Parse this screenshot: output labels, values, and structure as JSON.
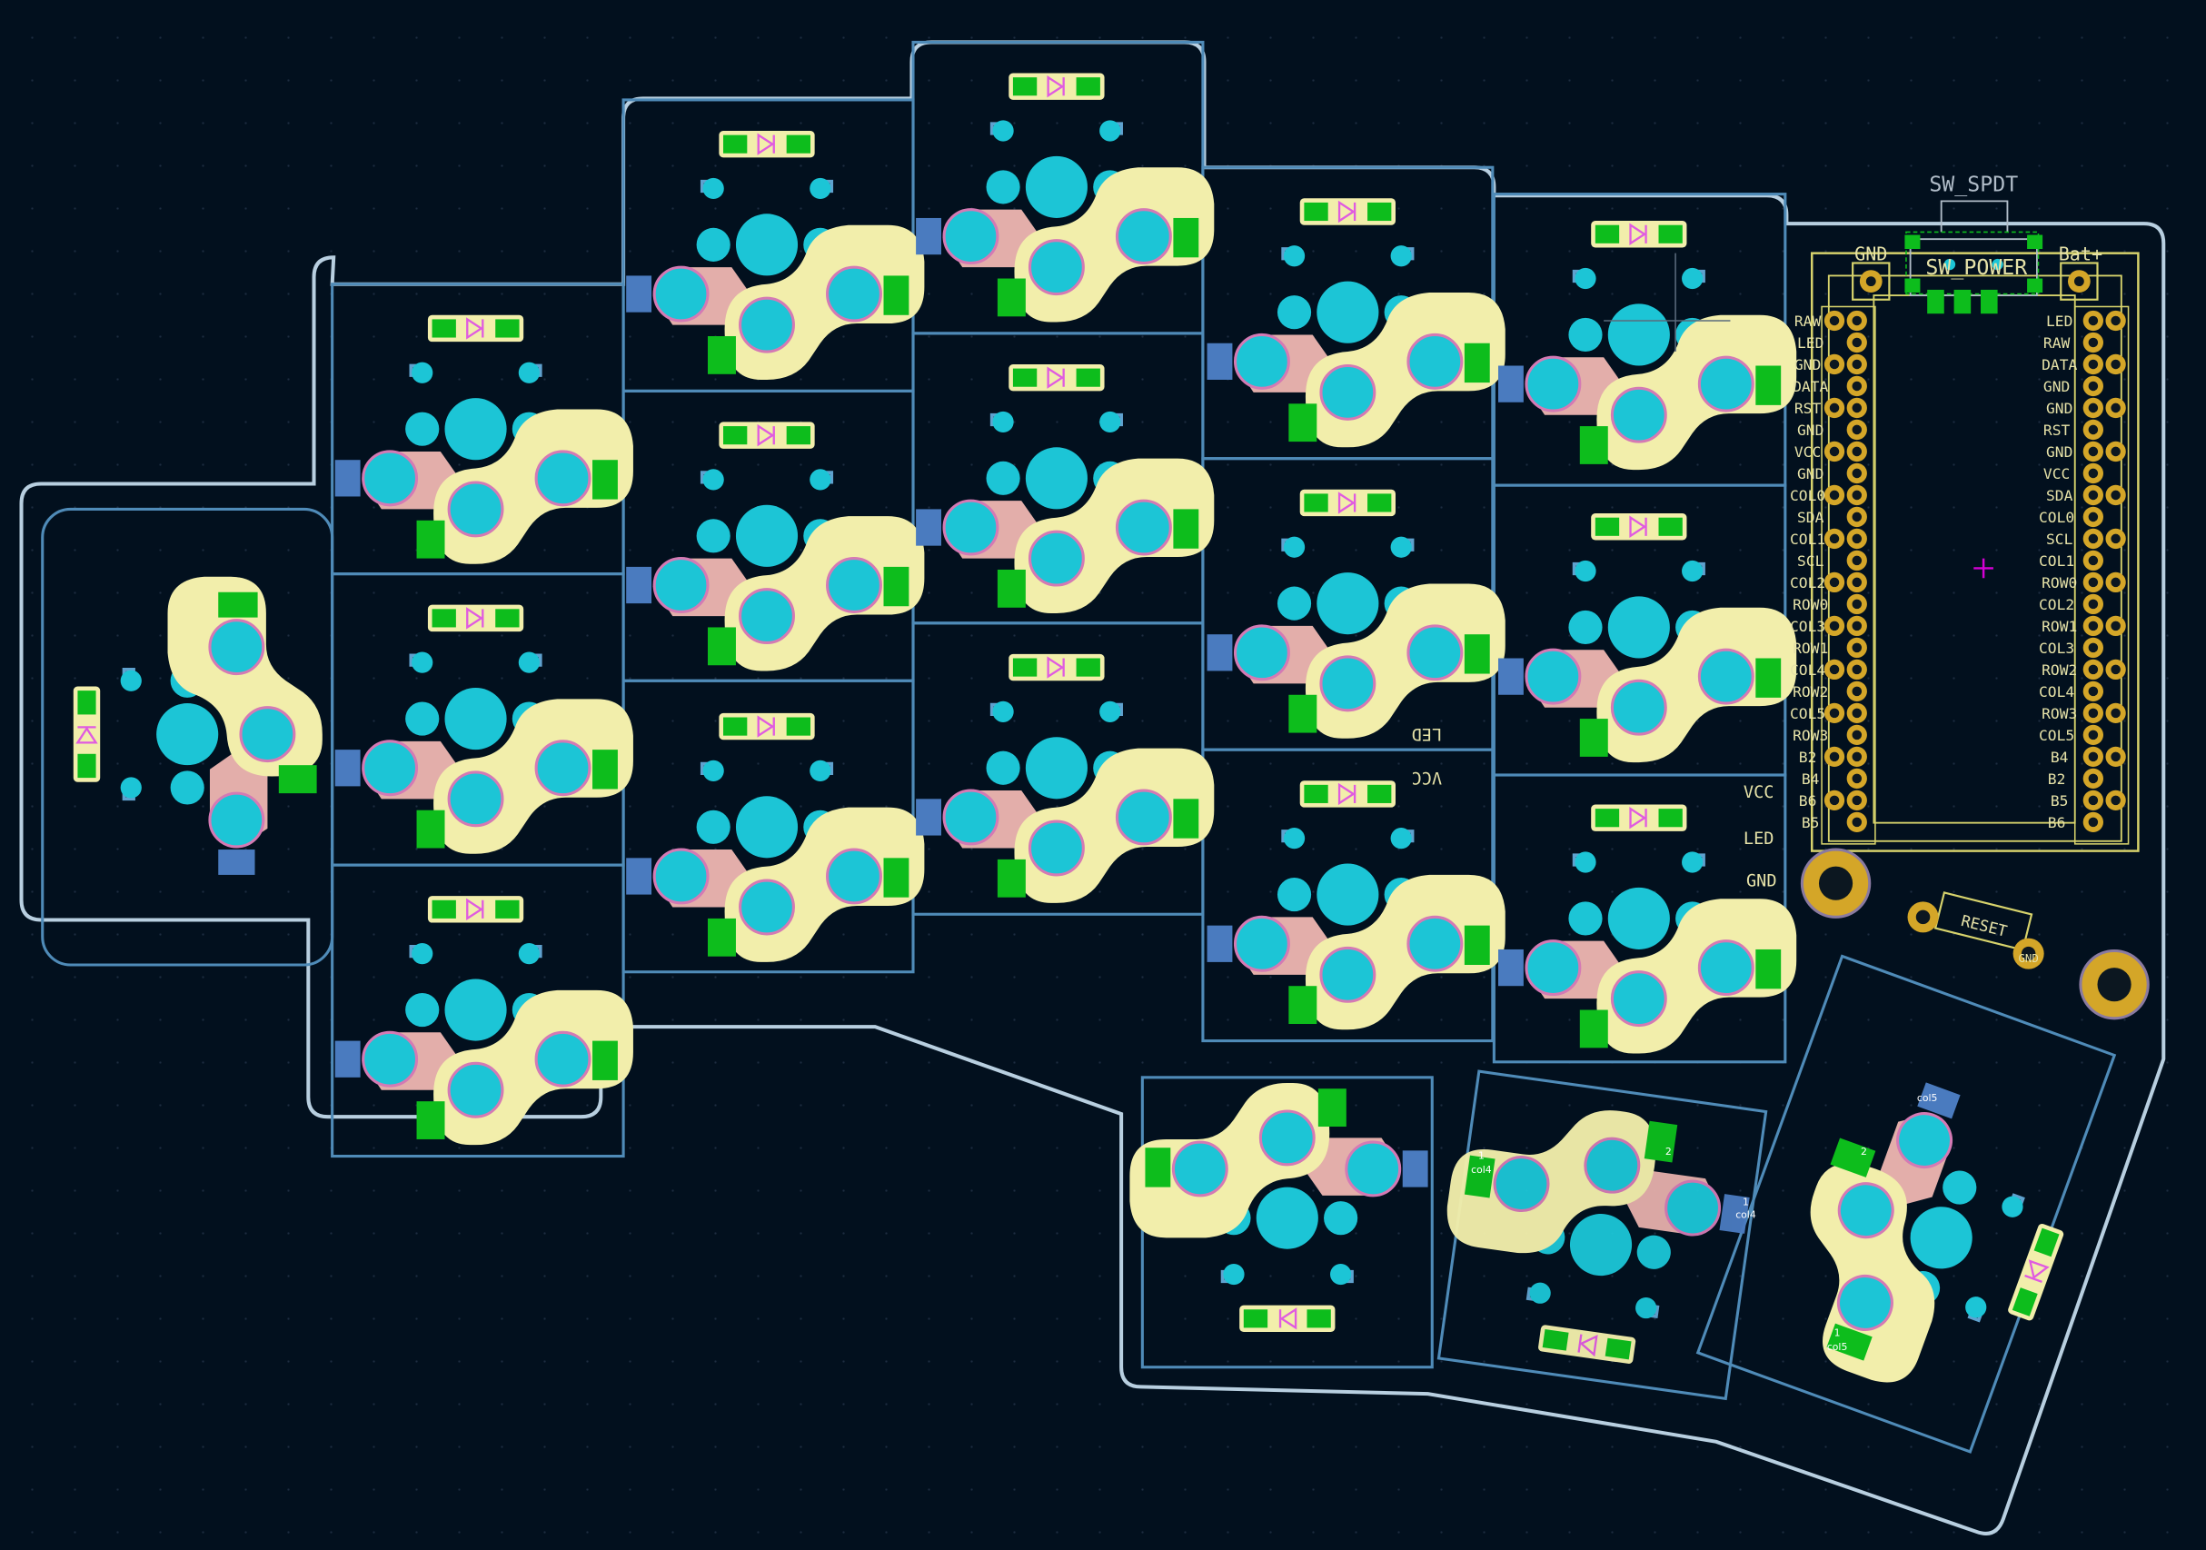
{
  "app": "KiCad PCB Editor",
  "view": "pcb-layout-canvas",
  "colors": {
    "background": "#02101e",
    "board_edge": "#b8cfe0",
    "courtyard": "#4f8bb8",
    "hole": "#1cc5d6",
    "pad_green": "#0dbd1c",
    "pad_blue": "#4a7bbf",
    "hotswap_pink": "#e3aeaa",
    "hotswap_yellow": "#f2eeab",
    "silkscreen": "#e6e2a8",
    "header_pin": "#d4a628",
    "marker": "#d400d4"
  },
  "labels": {
    "sw_spdt": "SW_SPDT",
    "sw_power": "SW_POWER",
    "gnd": "GND",
    "bat": "Bat+",
    "vcc": "VCC",
    "led": "LED",
    "vcc_mirrored": "VCC",
    "led_mirrored": "LED",
    "reset": "RESET",
    "reset_gnd": "GND"
  },
  "header_left_labels": [
    "RAW",
    "LED",
    "GND",
    "DATA",
    "RST",
    "GND",
    "VCC",
    "GND",
    "COL0",
    "SDA",
    "COL1",
    "SCL",
    "COL2",
    "ROW0",
    "COL3",
    "ROW1",
    "COL4",
    "ROW2",
    "COL5",
    "ROW3",
    "B2",
    "B4",
    "B6",
    "B5"
  ],
  "header_right_labels": [
    "LED",
    "RAW",
    "DATA",
    "GND",
    "GND",
    "RST",
    "GND",
    "VCC",
    "SDA",
    "COL0",
    "SCL",
    "COL1",
    "ROW0",
    "COL2",
    "ROW1",
    "COL3",
    "ROW2",
    "COL4",
    "ROW3",
    "COL5",
    "B4",
    "B2",
    "B5",
    "B6"
  ],
  "pad_numbers": {
    "one": "1",
    "two": "2"
  },
  "net_labels": {
    "col4": "col4",
    "col5": "col5"
  }
}
